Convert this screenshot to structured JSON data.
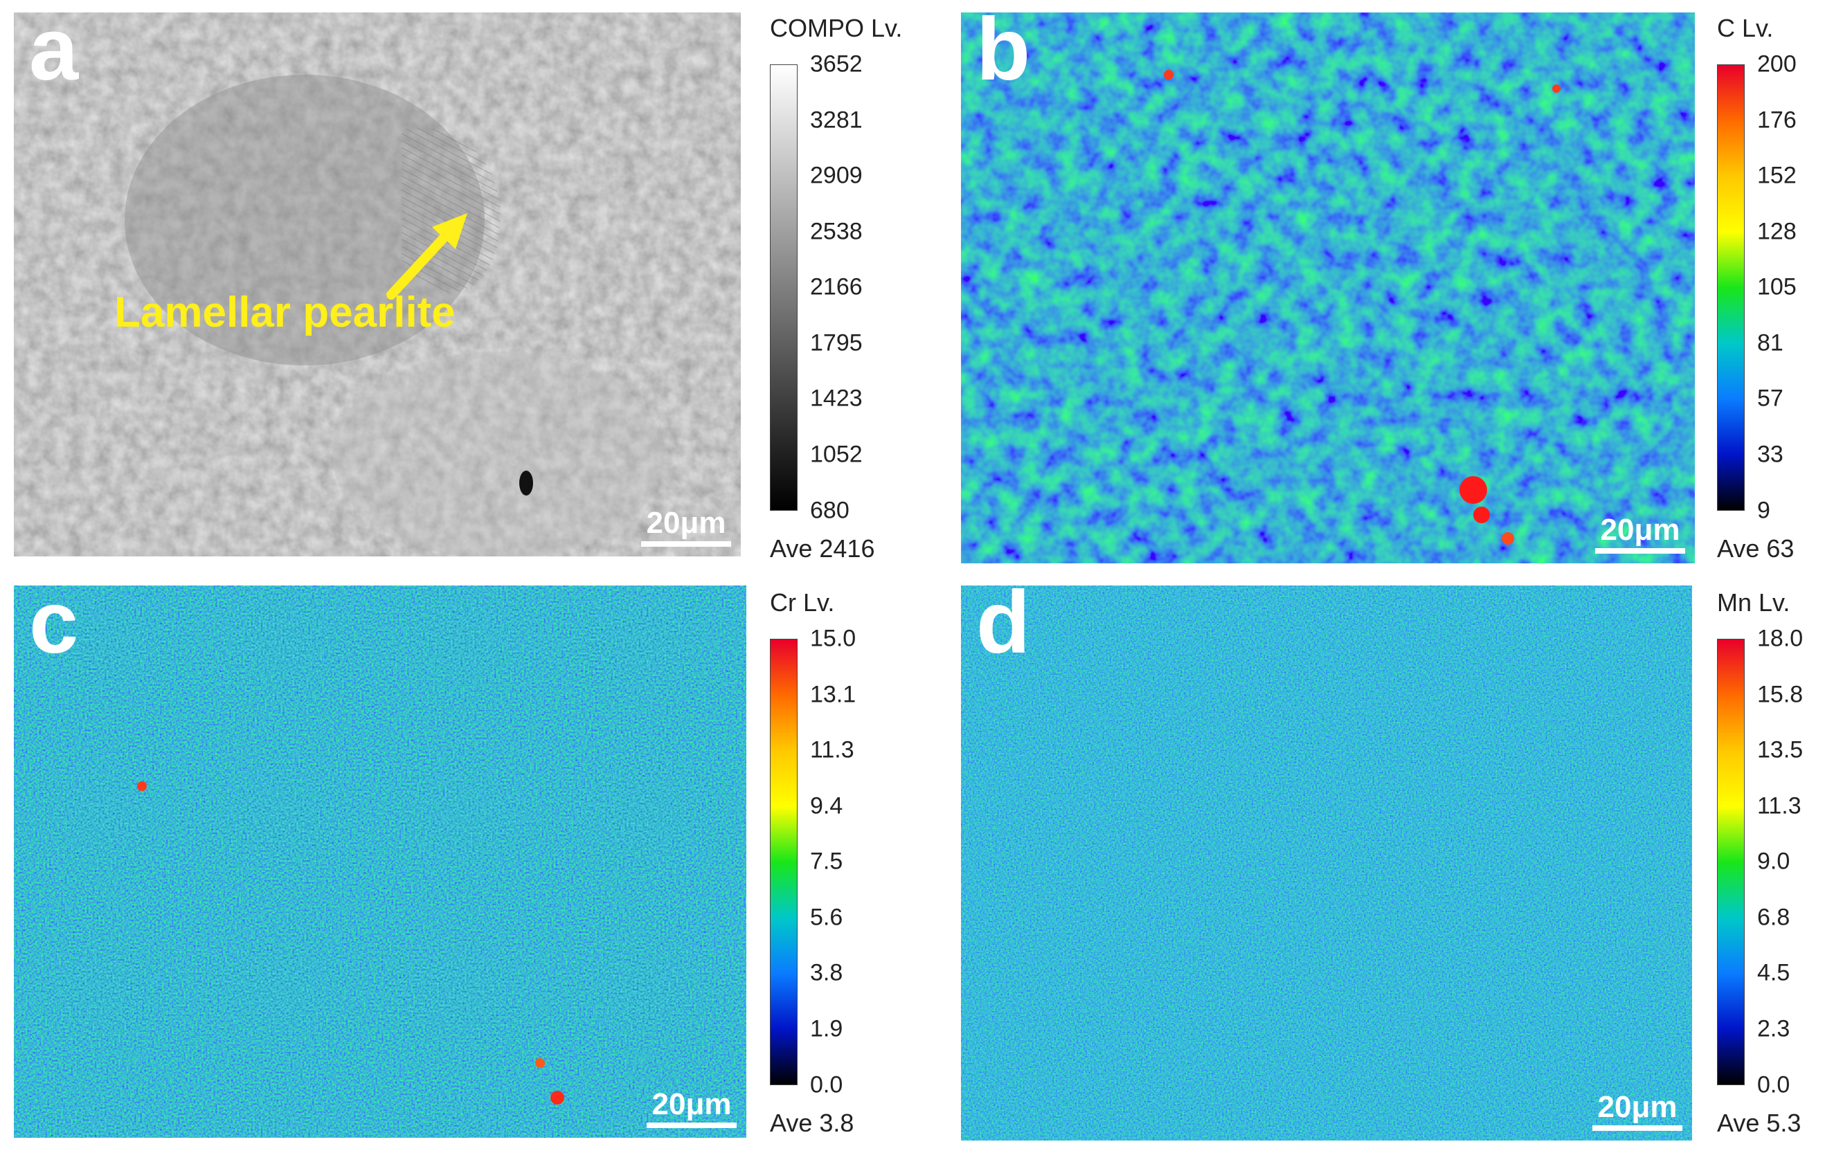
{
  "panels": [
    {
      "letter": "a",
      "scale_bar": "20μm",
      "annotation": "Lamellar pearlite",
      "legend": {
        "title": "COMPO Lv.",
        "ticks": [
          "3652",
          "3281",
          "2909",
          "2538",
          "2166",
          "1795",
          "1423",
          "1052",
          "680"
        ],
        "ave": "Ave 2416",
        "gradient": [
          "#ffffff",
          "#000000"
        ]
      }
    },
    {
      "letter": "b",
      "scale_bar": "20μm",
      "legend": {
        "title": "C Lv.",
        "ticks": [
          "200",
          "176",
          "152",
          "128",
          "105",
          "81",
          "57",
          "33",
          "9"
        ],
        "ave": "Ave 63",
        "gradient": [
          "#e8002a",
          "#ff6a00",
          "#ffc800",
          "#ffff00",
          "#19e619",
          "#00c8c8",
          "#0a7cff",
          "#0014c8",
          "#000000"
        ]
      }
    },
    {
      "letter": "c",
      "scale_bar": "20μm",
      "legend": {
        "title": "Cr Lv.",
        "ticks": [
          "15.0",
          "13.1",
          "11.3",
          "9.4",
          "7.5",
          "5.6",
          "3.8",
          "1.9",
          "0.0"
        ],
        "ave": "Ave 3.8",
        "gradient": [
          "#e8002a",
          "#ff6a00",
          "#ffc800",
          "#ffff00",
          "#19e619",
          "#00c8c8",
          "#0a7cff",
          "#0014c8",
          "#000000"
        ]
      }
    },
    {
      "letter": "d",
      "scale_bar": "20μm",
      "legend": {
        "title": "Mn Lv.",
        "ticks": [
          "18.0",
          "15.8",
          "13.5",
          "11.3",
          "9.0",
          "6.8",
          "4.5",
          "2.3",
          "0.0"
        ],
        "ave": "Ave 5.3",
        "gradient": [
          "#e8002a",
          "#ff6a00",
          "#ffc800",
          "#ffff00",
          "#19e619",
          "#00c8c8",
          "#0a7cff",
          "#0014c8",
          "#000000"
        ]
      }
    }
  ]
}
